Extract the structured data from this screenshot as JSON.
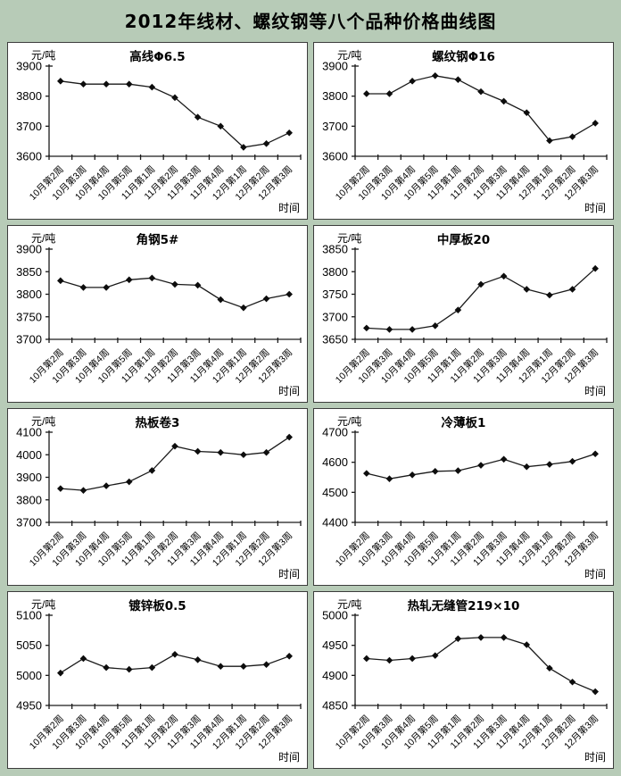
{
  "page": {
    "title": "2012年线材、螺纹钢等八个品种价格曲线图"
  },
  "chart_data": [
    {
      "type": "line",
      "title": "高线Φ6.5",
      "ylabel": "元/吨",
      "xlabel": "时间",
      "categories": [
        "10月第2周",
        "10月第3周",
        "10月第4周",
        "10月第5周",
        "11月第1周",
        "11月第2周",
        "11月第3周",
        "11月第4周",
        "12月第1周",
        "12月第2周",
        "12月第3周"
      ],
      "values": [
        3850,
        3840,
        3840,
        3840,
        3830,
        3795,
        3730,
        3700,
        3630,
        3642,
        3678
      ],
      "ylim": [
        3600,
        3900
      ],
      "yticks": [
        3600,
        3700,
        3800,
        3900
      ],
      "grid": false,
      "legend": "none",
      "marker": "diamond"
    },
    {
      "type": "line",
      "title": "螺纹钢Φ16",
      "ylabel": "元/吨",
      "xlabel": "时间",
      "categories": [
        "10月第2周",
        "10月第3周",
        "10月第4周",
        "10月第5周",
        "11月第1周",
        "11月第2周",
        "11月第3周",
        "11月第4周",
        "12月第1周",
        "12月第2周",
        "12月第3周"
      ],
      "values": [
        3808,
        3808,
        3850,
        3868,
        3855,
        3815,
        3783,
        3745,
        3652,
        3665,
        3710
      ],
      "ylim": [
        3600,
        3900
      ],
      "yticks": [
        3600,
        3700,
        3800,
        3900
      ],
      "grid": false,
      "legend": "none",
      "marker": "diamond"
    },
    {
      "type": "line",
      "title": "角钢5#",
      "ylabel": "元/吨",
      "xlabel": "时间",
      "categories": [
        "10月第2周",
        "10月第3周",
        "10月第4周",
        "10月第5周",
        "11月第1周",
        "11月第2周",
        "11月第3周",
        "11月第4周",
        "12月第1周",
        "12月第2周",
        "12月第3周"
      ],
      "values": [
        3830,
        3815,
        3815,
        3832,
        3836,
        3822,
        3820,
        3788,
        3770,
        3790,
        3800
      ],
      "ylim": [
        3700,
        3900
      ],
      "yticks": [
        3700,
        3750,
        3800,
        3850,
        3900
      ],
      "grid": false,
      "legend": "none",
      "marker": "diamond"
    },
    {
      "type": "line",
      "title": "中厚板20",
      "ylabel": "元/吨",
      "xlabel": "时间",
      "categories": [
        "10月第2周",
        "10月第3周",
        "10月第4周",
        "10月第5周",
        "11月第1周",
        "11月第2周",
        "11月第3周",
        "11月第4周",
        "12月第1周",
        "12月第2周",
        "12月第3周"
      ],
      "values": [
        3675,
        3672,
        3672,
        3680,
        3715,
        3772,
        3790,
        3761,
        3748,
        3761,
        3807
      ],
      "ylim": [
        3650,
        3850
      ],
      "yticks": [
        3650,
        3700,
        3750,
        3800,
        3850
      ],
      "grid": false,
      "legend": "none",
      "marker": "diamond"
    },
    {
      "type": "line",
      "title": "热板卷3",
      "ylabel": "元/吨",
      "xlabel": "时间",
      "categories": [
        "10月第2周",
        "10月第3周",
        "10月第4周",
        "10月第5周",
        "11月第1周",
        "11月第2周",
        "11月第3周",
        "11月第4周",
        "12月第1周",
        "12月第2周",
        "12月第3周"
      ],
      "values": [
        3850,
        3842,
        3862,
        3880,
        3930,
        4038,
        4015,
        4010,
        4000,
        4010,
        4078
      ],
      "ylim": [
        3700,
        4100
      ],
      "yticks": [
        3700,
        3800,
        3900,
        4000,
        4100
      ],
      "grid": false,
      "legend": "none",
      "marker": "diamond"
    },
    {
      "type": "line",
      "title": "冷薄板1",
      "ylabel": "元/吨",
      "xlabel": "时间",
      "categories": [
        "10月第2周",
        "10月第3周",
        "10月第4周",
        "10月第5周",
        "11月第1周",
        "11月第2周",
        "11月第3周",
        "11月第4周",
        "12月第1周",
        "12月第2周",
        "12月第3周"
      ],
      "values": [
        4563,
        4545,
        4558,
        4570,
        4572,
        4590,
        4610,
        4585,
        4593,
        4603,
        4628
      ],
      "ylim": [
        4400,
        4700
      ],
      "yticks": [
        4400,
        4500,
        4600,
        4700
      ],
      "grid": false,
      "legend": "none",
      "marker": "diamond"
    },
    {
      "type": "line",
      "title": "镀锌板0.5",
      "ylabel": "元/吨",
      "xlabel": "时间",
      "categories": [
        "10月第2周",
        "10月第3周",
        "10月第4周",
        "10月第5周",
        "11月第1周",
        "11月第2周",
        "11月第3周",
        "11月第4周",
        "12月第1周",
        "12月第2周",
        "12月第3周"
      ],
      "values": [
        5004,
        5028,
        5013,
        5010,
        5013,
        5035,
        5026,
        5015,
        5015,
        5018,
        5032
      ],
      "ylim": [
        4950,
        5100
      ],
      "yticks": [
        4950,
        5000,
        5050,
        5100
      ],
      "grid": false,
      "legend": "none",
      "marker": "diamond"
    },
    {
      "type": "line",
      "title": "热轧无缝管219×10",
      "ylabel": "元/吨",
      "xlabel": "时间",
      "categories": [
        "10月第2周",
        "10月第3周",
        "10月第4周",
        "10月第5周",
        "11月第1周",
        "11月第2周",
        "11月第3周",
        "11月第4周",
        "12月第1周",
        "12月第2周",
        "12月第3周"
      ],
      "values": [
        4928,
        4925,
        4928,
        4933,
        4961,
        4963,
        4963,
        4951,
        4912,
        4889,
        4873
      ],
      "ylim": [
        4850,
        5000
      ],
      "yticks": [
        4850,
        4900,
        4950,
        5000
      ],
      "grid": false,
      "legend": "none",
      "marker": "diamond"
    }
  ],
  "style": {
    "line_color": "#1a1a1a",
    "marker_color": "#0d0d0d",
    "background": "#b7cbb7",
    "panel_background": "#ffffff"
  }
}
